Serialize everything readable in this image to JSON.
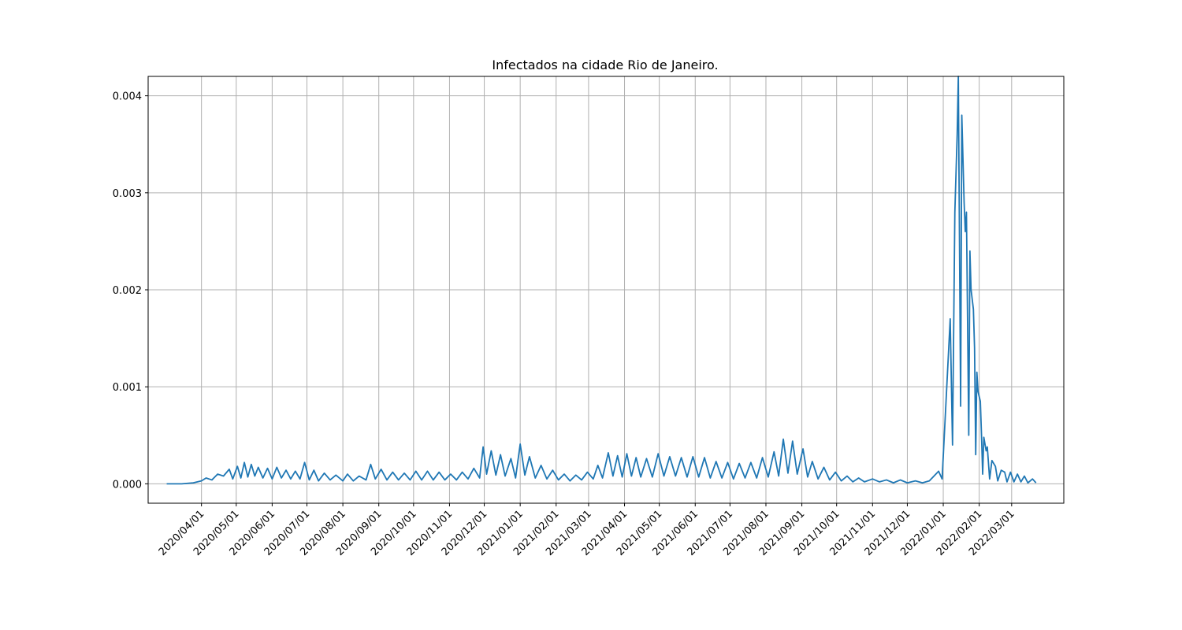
{
  "chart_data": {
    "type": "line",
    "title": "Infectados na cidade Rio de Janeiro.",
    "xlabel": "",
    "ylabel": "",
    "x_axis_type": "date",
    "x_range": [
      "2020-02-15",
      "2022-04-15"
    ],
    "ylim": [
      -0.0002,
      0.0042
    ],
    "grid": true,
    "line_color": "#1f77b4",
    "x_ticks": [
      "2020/04/01",
      "2020/05/01",
      "2020/06/01",
      "2020/07/01",
      "2020/08/01",
      "2020/09/01",
      "2020/10/01",
      "2020/11/01",
      "2020/12/01",
      "2021/01/01",
      "2021/02/01",
      "2021/03/01",
      "2021/04/01",
      "2021/05/01",
      "2021/06/01",
      "2021/07/01",
      "2021/08/01",
      "2021/09/01",
      "2021/10/01",
      "2021/11/01",
      "2021/12/01",
      "2022/01/01",
      "2022/02/01",
      "2022/03/01"
    ],
    "y_ticks": [
      {
        "value": 0,
        "label": "0.000"
      },
      {
        "value": 0.001,
        "label": "0.001"
      },
      {
        "value": 0.002,
        "label": "0.002"
      },
      {
        "value": 0.003,
        "label": "0.003"
      },
      {
        "value": 0.004,
        "label": "0.004"
      }
    ],
    "series": [
      {
        "points": [
          [
            "2020-03-02",
            0
          ],
          [
            "2020-03-15",
            0
          ],
          [
            "2020-03-25",
            1e-05
          ],
          [
            "2020-04-01",
            3e-05
          ],
          [
            "2020-04-05",
            6e-05
          ],
          [
            "2020-04-10",
            4e-05
          ],
          [
            "2020-04-15",
            0.0001
          ],
          [
            "2020-04-20",
            8e-05
          ],
          [
            "2020-04-25",
            0.00015
          ],
          [
            "2020-04-28",
            5e-05
          ],
          [
            "2020-05-02",
            0.00018
          ],
          [
            "2020-05-05",
            6e-05
          ],
          [
            "2020-05-08",
            0.00022
          ],
          [
            "2020-05-11",
            7e-05
          ],
          [
            "2020-05-14",
            0.0002
          ],
          [
            "2020-05-17",
            8e-05
          ],
          [
            "2020-05-20",
            0.00017
          ],
          [
            "2020-05-24",
            6e-05
          ],
          [
            "2020-05-28",
            0.00016
          ],
          [
            "2020-06-01",
            5e-05
          ],
          [
            "2020-06-05",
            0.00017
          ],
          [
            "2020-06-09",
            6e-05
          ],
          [
            "2020-06-13",
            0.00014
          ],
          [
            "2020-06-17",
            5e-05
          ],
          [
            "2020-06-21",
            0.00013
          ],
          [
            "2020-06-25",
            5e-05
          ],
          [
            "2020-06-29",
            0.00022
          ],
          [
            "2020-07-03",
            4e-05
          ],
          [
            "2020-07-07",
            0.00014
          ],
          [
            "2020-07-11",
            3e-05
          ],
          [
            "2020-07-16",
            0.00011
          ],
          [
            "2020-07-21",
            4e-05
          ],
          [
            "2020-07-26",
            9e-05
          ],
          [
            "2020-08-01",
            3e-05
          ],
          [
            "2020-08-05",
            0.0001
          ],
          [
            "2020-08-10",
            3e-05
          ],
          [
            "2020-08-15",
            8e-05
          ],
          [
            "2020-08-21",
            4e-05
          ],
          [
            "2020-08-25",
            0.0002
          ],
          [
            "2020-08-29",
            5e-05
          ],
          [
            "2020-09-03",
            0.00015
          ],
          [
            "2020-09-08",
            4e-05
          ],
          [
            "2020-09-13",
            0.00012
          ],
          [
            "2020-09-18",
            4e-05
          ],
          [
            "2020-09-23",
            0.00011
          ],
          [
            "2020-09-28",
            4e-05
          ],
          [
            "2020-10-03",
            0.00013
          ],
          [
            "2020-10-08",
            4e-05
          ],
          [
            "2020-10-13",
            0.00013
          ],
          [
            "2020-10-18",
            4e-05
          ],
          [
            "2020-10-23",
            0.00012
          ],
          [
            "2020-10-28",
            4e-05
          ],
          [
            "2020-11-02",
            0.0001
          ],
          [
            "2020-11-07",
            4e-05
          ],
          [
            "2020-11-12",
            0.00012
          ],
          [
            "2020-11-17",
            5e-05
          ],
          [
            "2020-11-22",
            0.00016
          ],
          [
            "2020-11-27",
            6e-05
          ],
          [
            "2020-11-30",
            0.00038
          ],
          [
            "2020-12-03",
            0.0001
          ],
          [
            "2020-12-07",
            0.00034
          ],
          [
            "2020-12-11",
            9e-05
          ],
          [
            "2020-12-15",
            0.0003
          ],
          [
            "2020-12-19",
            8e-05
          ],
          [
            "2020-12-24",
            0.00026
          ],
          [
            "2020-12-28",
            6e-05
          ],
          [
            "2021-01-01",
            0.00041
          ],
          [
            "2021-01-05",
            9e-05
          ],
          [
            "2021-01-09",
            0.00028
          ],
          [
            "2021-01-14",
            6e-05
          ],
          [
            "2021-01-19",
            0.00019
          ],
          [
            "2021-01-24",
            5e-05
          ],
          [
            "2021-01-29",
            0.00014
          ],
          [
            "2021-02-03",
            4e-05
          ],
          [
            "2021-02-08",
            0.0001
          ],
          [
            "2021-02-13",
            3e-05
          ],
          [
            "2021-02-18",
            9e-05
          ],
          [
            "2021-02-23",
            4e-05
          ],
          [
            "2021-02-28",
            0.00012
          ],
          [
            "2021-03-05",
            5e-05
          ],
          [
            "2021-03-09",
            0.00019
          ],
          [
            "2021-03-13",
            6e-05
          ],
          [
            "2021-03-18",
            0.00032
          ],
          [
            "2021-03-22",
            8e-05
          ],
          [
            "2021-03-26",
            0.00029
          ],
          [
            "2021-03-30",
            7e-05
          ],
          [
            "2021-04-03",
            0.00031
          ],
          [
            "2021-04-07",
            8e-05
          ],
          [
            "2021-04-11",
            0.00027
          ],
          [
            "2021-04-15",
            7e-05
          ],
          [
            "2021-04-20",
            0.00026
          ],
          [
            "2021-04-25",
            7e-05
          ],
          [
            "2021-04-30",
            0.00031
          ],
          [
            "2021-05-05",
            8e-05
          ],
          [
            "2021-05-10",
            0.00028
          ],
          [
            "2021-05-15",
            8e-05
          ],
          [
            "2021-05-20",
            0.00027
          ],
          [
            "2021-05-25",
            7e-05
          ],
          [
            "2021-05-30",
            0.00028
          ],
          [
            "2021-06-04",
            7e-05
          ],
          [
            "2021-06-09",
            0.00027
          ],
          [
            "2021-06-14",
            6e-05
          ],
          [
            "2021-06-19",
            0.00023
          ],
          [
            "2021-06-24",
            6e-05
          ],
          [
            "2021-06-29",
            0.00022
          ],
          [
            "2021-07-04",
            5e-05
          ],
          [
            "2021-07-09",
            0.00021
          ],
          [
            "2021-07-14",
            6e-05
          ],
          [
            "2021-07-19",
            0.00022
          ],
          [
            "2021-07-24",
            6e-05
          ],
          [
            "2021-07-29",
            0.00027
          ],
          [
            "2021-08-03",
            7e-05
          ],
          [
            "2021-08-08",
            0.00033
          ],
          [
            "2021-08-12",
            8e-05
          ],
          [
            "2021-08-16",
            0.00046
          ],
          [
            "2021-08-20",
            0.00011
          ],
          [
            "2021-08-24",
            0.00044
          ],
          [
            "2021-08-28",
            0.0001
          ],
          [
            "2021-09-02",
            0.00036
          ],
          [
            "2021-09-06",
            7e-05
          ],
          [
            "2021-09-10",
            0.00023
          ],
          [
            "2021-09-15",
            5e-05
          ],
          [
            "2021-09-20",
            0.00017
          ],
          [
            "2021-09-25",
            4e-05
          ],
          [
            "2021-09-30",
            0.00012
          ],
          [
            "2021-10-05",
            3e-05
          ],
          [
            "2021-10-10",
            8e-05
          ],
          [
            "2021-10-15",
            2e-05
          ],
          [
            "2021-10-20",
            6e-05
          ],
          [
            "2021-10-25",
            2e-05
          ],
          [
            "2021-11-01",
            5e-05
          ],
          [
            "2021-11-07",
            2e-05
          ],
          [
            "2021-11-13",
            4e-05
          ],
          [
            "2021-11-19",
            1e-05
          ],
          [
            "2021-11-25",
            4e-05
          ],
          [
            "2021-12-01",
            1e-05
          ],
          [
            "2021-12-08",
            3e-05
          ],
          [
            "2021-12-14",
            1e-05
          ],
          [
            "2021-12-20",
            3e-05
          ],
          [
            "2021-12-24",
            8e-05
          ],
          [
            "2021-12-28",
            0.00013
          ],
          [
            "2021-12-31",
            5e-05
          ],
          [
            "2022-01-07",
            0.0017
          ],
          [
            "2022-01-09",
            0.0004
          ],
          [
            "2022-01-11",
            0.0028
          ],
          [
            "2022-01-13",
            0.0036
          ],
          [
            "2022-01-14",
            0.0042
          ],
          [
            "2022-01-16",
            0.0008
          ],
          [
            "2022-01-17",
            0.0038
          ],
          [
            "2022-01-19",
            0.0029
          ],
          [
            "2022-01-20",
            0.0026
          ],
          [
            "2022-01-21",
            0.0028
          ],
          [
            "2022-01-23",
            0.0005
          ],
          [
            "2022-01-24",
            0.0024
          ],
          [
            "2022-01-25",
            0.002
          ],
          [
            "2022-01-27",
            0.0018
          ],
          [
            "2022-01-28",
            0.0014
          ],
          [
            "2022-01-29",
            0.0003
          ],
          [
            "2022-01-30",
            0.00115
          ],
          [
            "2022-01-31",
            0.00095
          ],
          [
            "2022-02-02",
            0.00085
          ],
          [
            "2022-02-03",
            0.0005
          ],
          [
            "2022-02-04",
            0.0001
          ],
          [
            "2022-02-05",
            0.00048
          ],
          [
            "2022-02-07",
            0.00034
          ],
          [
            "2022-02-08",
            0.00038
          ],
          [
            "2022-02-10",
            5e-05
          ],
          [
            "2022-02-12",
            0.00024
          ],
          [
            "2022-02-15",
            0.00018
          ],
          [
            "2022-02-17",
            3e-05
          ],
          [
            "2022-02-20",
            0.00014
          ],
          [
            "2022-02-23",
            0.00012
          ],
          [
            "2022-02-25",
            2e-05
          ],
          [
            "2022-02-28",
            0.00012
          ],
          [
            "2022-03-03",
            2e-05
          ],
          [
            "2022-03-06",
            0.0001
          ],
          [
            "2022-03-09",
            2e-05
          ],
          [
            "2022-03-12",
            8e-05
          ],
          [
            "2022-03-15",
            1e-05
          ],
          [
            "2022-03-19",
            5e-05
          ],
          [
            "2022-03-22",
            1e-05
          ]
        ]
      }
    ]
  }
}
